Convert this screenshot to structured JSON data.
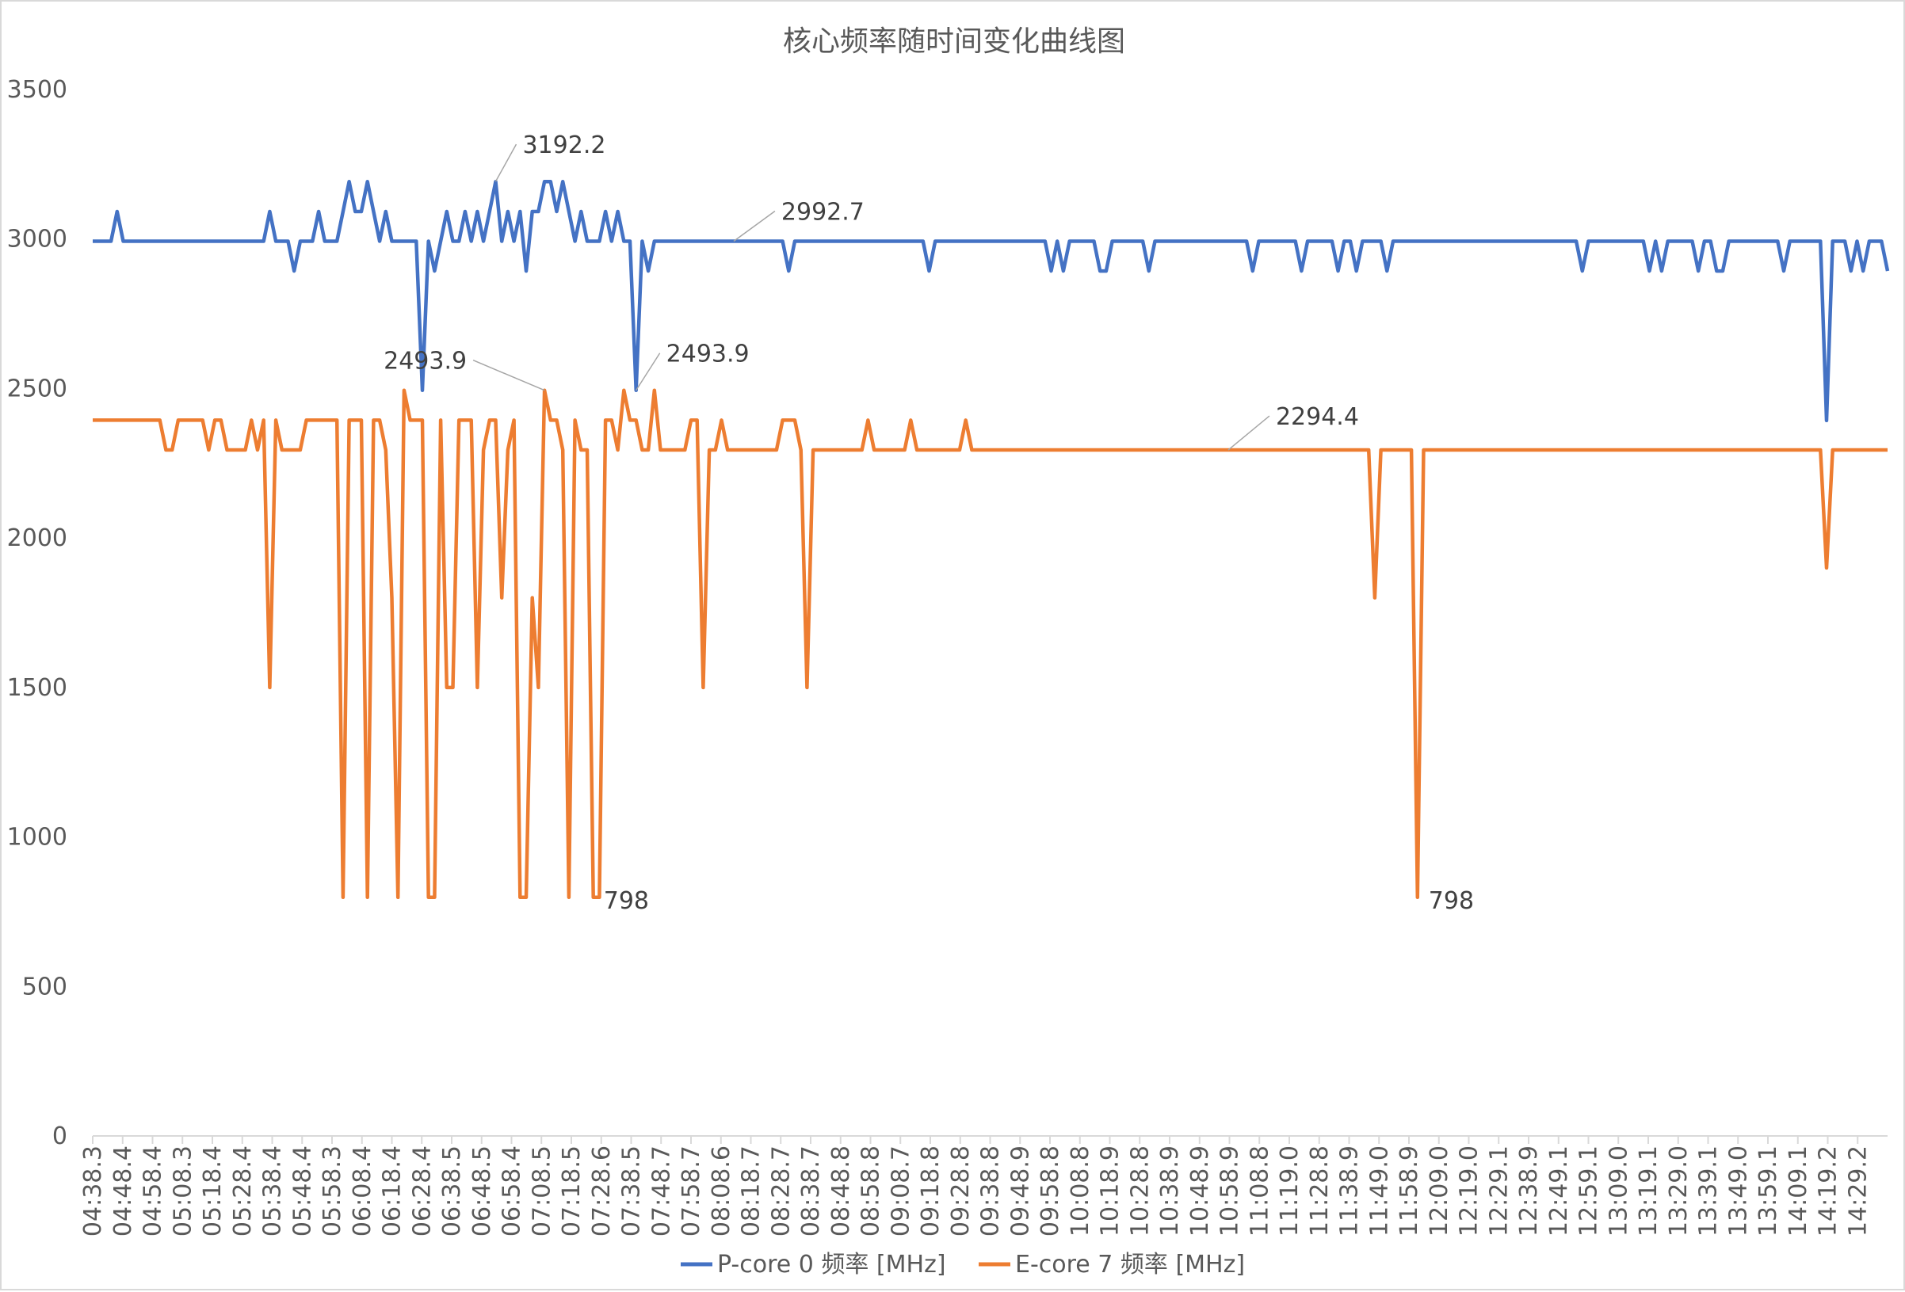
{
  "chart_data": {
    "type": "line",
    "title": "核心频率随时间变化曲线图",
    "xlabel": "",
    "ylabel": "",
    "ylim": [
      0,
      3500
    ],
    "yticks": [
      0,
      500,
      1000,
      1500,
      2000,
      2500,
      3000,
      3500
    ],
    "grid": false,
    "legend_position": "bottom",
    "x_tick_labels": [
      "04:38.3",
      "04:48.4",
      "04:58.4",
      "05:08.3",
      "05:18.4",
      "05:28.4",
      "05:38.4",
      "05:48.4",
      "05:58.3",
      "06:08.4",
      "06:18.4",
      "06:28.4",
      "06:38.5",
      "06:48.5",
      "06:58.4",
      "07:08.5",
      "07:18.5",
      "07:28.6",
      "07:38.5",
      "07:48.7",
      "07:58.7",
      "08:08.6",
      "08:18.7",
      "08:28.7",
      "08:38.7",
      "08:48.8",
      "08:58.8",
      "09:08.7",
      "09:18.8",
      "09:28.8",
      "09:38.8",
      "09:48.9",
      "09:58.8",
      "10:08.8",
      "10:18.9",
      "10:28.8",
      "10:38.9",
      "10:48.9",
      "10:58.9",
      "11:08.8",
      "11:19.0",
      "11:28.8",
      "11:38.9",
      "11:49.0",
      "11:58.9",
      "12:09.0",
      "12:19.0",
      "12:29.1",
      "12:38.9",
      "12:49.1",
      "12:59.1",
      "13:09.0",
      "13:19.1",
      "13:29.0",
      "13:39.1",
      "13:49.0",
      "13:59.1",
      "14:09.1",
      "14:19.2",
      "14:29.2"
    ],
    "point_count": 295,
    "series": [
      {
        "name": "P-core 0 频率 [MHz]",
        "color": "#4472C4",
        "default_value": 2992.7,
        "changes": [
          [
            4,
            3092
          ],
          [
            5,
            2992.7
          ],
          [
            29,
            3092
          ],
          [
            30,
            2992.7
          ],
          [
            32,
            2992.7
          ],
          [
            33,
            2893
          ],
          [
            34,
            2992.7
          ],
          [
            36,
            2992.7
          ],
          [
            37,
            3092
          ],
          [
            41,
            3092
          ],
          [
            42,
            3192.2
          ],
          [
            43,
            3092
          ],
          [
            44,
            3092
          ],
          [
            45,
            3192.2
          ],
          [
            46,
            3092
          ],
          [
            47,
            2992.7
          ],
          [
            48,
            3092
          ],
          [
            49,
            2992.7
          ],
          [
            51,
            2992.7
          ],
          [
            52,
            2992.7
          ],
          [
            53,
            2992.7
          ],
          [
            54,
            2493.9
          ],
          [
            55,
            2992.7
          ],
          [
            56,
            2893
          ],
          [
            57,
            2992.7
          ],
          [
            58,
            3092
          ],
          [
            61,
            3092
          ],
          [
            62,
            2992.7
          ],
          [
            63,
            3092
          ],
          [
            65,
            3092
          ],
          [
            66,
            3192.2
          ],
          [
            67,
            2992.7
          ],
          [
            68,
            3092
          ],
          [
            70,
            3092
          ],
          [
            71,
            2893
          ],
          [
            72,
            3092
          ],
          [
            73,
            3092
          ],
          [
            74,
            3192.2
          ],
          [
            75,
            3192.2
          ],
          [
            76,
            3092
          ],
          [
            77,
            3192.2
          ],
          [
            78,
            3092
          ],
          [
            79,
            2992.7
          ],
          [
            80,
            3092
          ],
          [
            81,
            2992.7
          ],
          [
            83,
            2992.7
          ],
          [
            84,
            3092
          ],
          [
            85,
            2992.7
          ],
          [
            86,
            3092
          ],
          [
            87,
            2992.7
          ],
          [
            88,
            2992.7
          ],
          [
            89,
            2493.9
          ],
          [
            90,
            2992.7
          ],
          [
            91,
            2893
          ],
          [
            92,
            2992.7
          ],
          [
            114,
            2893
          ],
          [
            137,
            2893
          ],
          [
            157,
            2893
          ],
          [
            159,
            2893
          ],
          [
            165,
            2893
          ],
          [
            166,
            2893
          ],
          [
            173,
            2893
          ],
          [
            190,
            2893
          ],
          [
            198,
            2893
          ],
          [
            204,
            2893
          ],
          [
            207,
            2893
          ],
          [
            212,
            2893
          ],
          [
            244,
            2893
          ],
          [
            255,
            2893
          ],
          [
            257,
            2893
          ],
          [
            263,
            2893
          ],
          [
            266,
            2893
          ],
          [
            267,
            2893
          ],
          [
            277,
            2893
          ],
          [
            284,
            2393
          ],
          [
            288,
            2893
          ],
          [
            290,
            2893
          ],
          [
            294,
            2893
          ]
        ]
      },
      {
        "name": "E-core 7 频率 [MHz]",
        "color": "#ED7D31",
        "default_value": 2294.4,
        "changes": [
          [
            0,
            2394
          ],
          [
            1,
            2394
          ],
          [
            2,
            2394
          ],
          [
            3,
            2394
          ],
          [
            4,
            2394
          ],
          [
            5,
            2394
          ],
          [
            6,
            2394
          ],
          [
            7,
            2394
          ],
          [
            8,
            2394
          ],
          [
            9,
            2394
          ],
          [
            10,
            2394
          ],
          [
            11,
            2394
          ],
          [
            12,
            2294.4
          ],
          [
            13,
            2294.4
          ],
          [
            14,
            2394
          ],
          [
            15,
            2394
          ],
          [
            16,
            2394
          ],
          [
            17,
            2394
          ],
          [
            18,
            2394
          ],
          [
            19,
            2294.4
          ],
          [
            20,
            2394
          ],
          [
            21,
            2394
          ],
          [
            22,
            2294.4
          ],
          [
            23,
            2294.4
          ],
          [
            24,
            2294.4
          ],
          [
            25,
            2294.4
          ],
          [
            26,
            2394
          ],
          [
            27,
            2294.4
          ],
          [
            28,
            2394
          ],
          [
            29,
            1500
          ],
          [
            30,
            2394
          ],
          [
            31,
            2294.4
          ],
          [
            32,
            2294.4
          ],
          [
            33,
            2294.4
          ],
          [
            34,
            2294.4
          ],
          [
            35,
            2394
          ],
          [
            36,
            2394
          ],
          [
            37,
            2394
          ],
          [
            38,
            2394
          ],
          [
            39,
            2394
          ],
          [
            40,
            2394
          ],
          [
            41,
            798
          ],
          [
            42,
            2394
          ],
          [
            43,
            2394
          ],
          [
            44,
            2394
          ],
          [
            45,
            798
          ],
          [
            46,
            2394
          ],
          [
            47,
            2394
          ],
          [
            48,
            2294.4
          ],
          [
            49,
            1800
          ],
          [
            50,
            798
          ],
          [
            51,
            2493.9
          ],
          [
            52,
            2394
          ],
          [
            53,
            2394
          ],
          [
            54,
            2394
          ],
          [
            55,
            798
          ],
          [
            56,
            798
          ],
          [
            57,
            2394
          ],
          [
            58,
            1500
          ],
          [
            59,
            1500
          ],
          [
            60,
            2394
          ],
          [
            61,
            2394
          ],
          [
            62,
            2394
          ],
          [
            63,
            1500
          ],
          [
            64,
            2294.4
          ],
          [
            65,
            2394
          ],
          [
            66,
            2394
          ],
          [
            67,
            1800
          ],
          [
            68,
            2294.4
          ],
          [
            69,
            2394
          ],
          [
            70,
            798
          ],
          [
            71,
            798
          ],
          [
            72,
            1800
          ],
          [
            73,
            1500
          ],
          [
            74,
            2493.9
          ],
          [
            75,
            2394
          ],
          [
            76,
            2394
          ],
          [
            77,
            2294.4
          ],
          [
            78,
            798
          ],
          [
            79,
            2394
          ],
          [
            80,
            2294.4
          ],
          [
            81,
            2294.4
          ],
          [
            82,
            798
          ],
          [
            83,
            798
          ],
          [
            84,
            2394
          ],
          [
            85,
            2394
          ],
          [
            86,
            2294.4
          ],
          [
            87,
            2493.9
          ],
          [
            88,
            2394
          ],
          [
            89,
            2394
          ],
          [
            90,
            2294.4
          ],
          [
            91,
            2294.4
          ],
          [
            92,
            2493.9
          ],
          [
            98,
            2394
          ],
          [
            99,
            2394
          ],
          [
            100,
            1500
          ],
          [
            101,
            2294.4
          ],
          [
            102,
            2294.4
          ],
          [
            103,
            2394
          ],
          [
            110,
            2294.4
          ],
          [
            113,
            2394
          ],
          [
            114,
            2394
          ],
          [
            115,
            2394
          ],
          [
            116,
            2294.4
          ],
          [
            117,
            1500
          ],
          [
            127,
            2394
          ],
          [
            134,
            2394
          ],
          [
            143,
            2394
          ],
          [
            210,
            1800
          ],
          [
            217,
            798
          ],
          [
            284,
            1900
          ]
        ]
      }
    ],
    "data_labels": [
      {
        "series": 0,
        "text": "3192.2"
      },
      {
        "series": 0,
        "text": "2992.7"
      },
      {
        "series": 0,
        "text": "2493.9"
      },
      {
        "series": 1,
        "text": "2493.9"
      },
      {
        "series": 1,
        "text": "2294.4"
      },
      {
        "series": 1,
        "text": "798"
      },
      {
        "series": 1,
        "text": "798"
      }
    ]
  }
}
